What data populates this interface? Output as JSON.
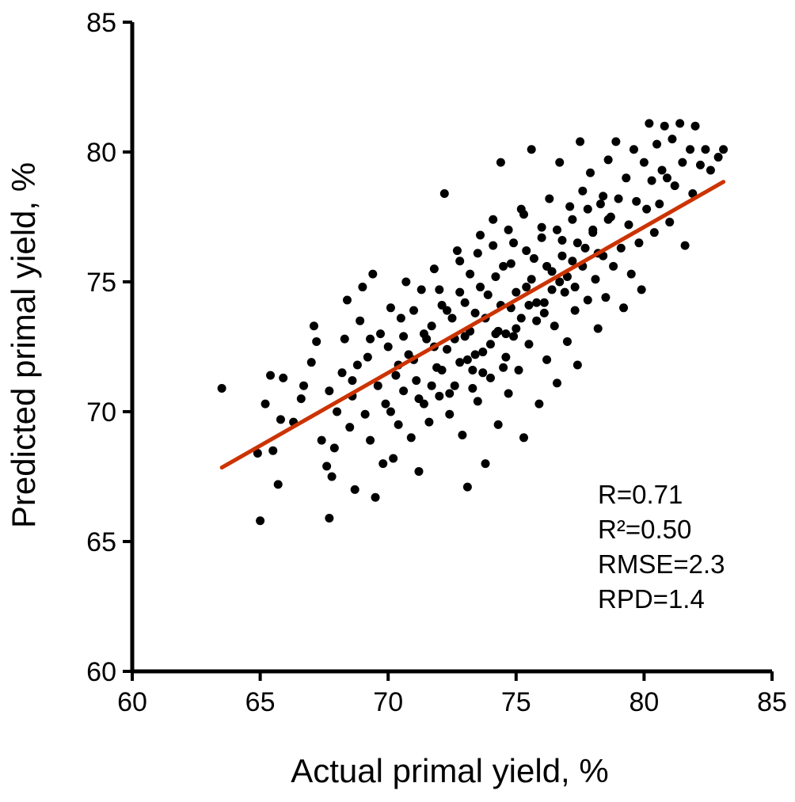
{
  "chart_data": {
    "type": "scatter",
    "title": "",
    "xlabel": "Actual primal yield, %",
    "ylabel": "Predicted primal yield, %",
    "xlim": [
      60,
      85
    ],
    "ylim": [
      60,
      85
    ],
    "x_ticks": [
      60,
      65,
      70,
      75,
      80,
      85
    ],
    "y_ticks": [
      60,
      65,
      70,
      75,
      80,
      85
    ],
    "grid": false,
    "point_color": "#000000",
    "fit_color": "#cc3300",
    "fit_line": {
      "x": [
        63.5,
        83.1
      ],
      "y": [
        67.85,
        78.85
      ]
    },
    "stats": [
      "R=0.71",
      "R²=0.50",
      "RMSE=2.3",
      "RPD=1.4"
    ],
    "points": [
      [
        63.5,
        70.9
      ],
      [
        64.9,
        68.4
      ],
      [
        65.0,
        65.8
      ],
      [
        65.2,
        70.3
      ],
      [
        65.4,
        71.4
      ],
      [
        65.5,
        68.5
      ],
      [
        65.7,
        67.2
      ],
      [
        65.8,
        69.7
      ],
      [
        65.9,
        71.3
      ],
      [
        66.3,
        69.6
      ],
      [
        66.6,
        70.5
      ],
      [
        66.7,
        71.0
      ],
      [
        67.0,
        71.9
      ],
      [
        67.1,
        73.3
      ],
      [
        67.2,
        72.7
      ],
      [
        67.4,
        68.9
      ],
      [
        67.6,
        67.9
      ],
      [
        67.7,
        70.8
      ],
      [
        67.7,
        65.9
      ],
      [
        67.8,
        67.5
      ],
      [
        67.9,
        68.6
      ],
      [
        68.0,
        70.0
      ],
      [
        68.2,
        71.5
      ],
      [
        68.3,
        72.8
      ],
      [
        68.4,
        74.3
      ],
      [
        68.5,
        69.4
      ],
      [
        68.6,
        70.6
      ],
      [
        68.7,
        67.0
      ],
      [
        68.8,
        71.8
      ],
      [
        68.9,
        73.5
      ],
      [
        69.0,
        74.8
      ],
      [
        69.1,
        69.9
      ],
      [
        69.2,
        72.1
      ],
      [
        69.3,
        68.9
      ],
      [
        69.4,
        75.3
      ],
      [
        69.5,
        66.7
      ],
      [
        69.6,
        71.0
      ],
      [
        69.7,
        73.0
      ],
      [
        69.8,
        68.0
      ],
      [
        69.9,
        70.3
      ],
      [
        70.0,
        72.5
      ],
      [
        70.1,
        74.0
      ],
      [
        70.2,
        68.2
      ],
      [
        70.3,
        71.4
      ],
      [
        70.4,
        69.5
      ],
      [
        70.5,
        73.6
      ],
      [
        70.6,
        70.8
      ],
      [
        70.7,
        75.0
      ],
      [
        70.8,
        72.2
      ],
      [
        70.9,
        69.0
      ],
      [
        71.0,
        73.9
      ],
      [
        71.1,
        71.2
      ],
      [
        71.2,
        67.7
      ],
      [
        71.3,
        74.7
      ],
      [
        71.4,
        70.3
      ],
      [
        71.5,
        72.8
      ],
      [
        71.6,
        69.6
      ],
      [
        71.7,
        73.3
      ],
      [
        71.8,
        75.5
      ],
      [
        71.9,
        71.7
      ],
      [
        72.0,
        70.6
      ],
      [
        72.1,
        74.1
      ],
      [
        72.2,
        78.4
      ],
      [
        72.3,
        72.4
      ],
      [
        72.4,
        69.9
      ],
      [
        72.5,
        73.6
      ],
      [
        72.6,
        71.0
      ],
      [
        72.7,
        76.2
      ],
      [
        72.8,
        74.6
      ],
      [
        72.9,
        69.1
      ],
      [
        73.0,
        72.9
      ],
      [
        73.1,
        67.1
      ],
      [
        73.2,
        75.3
      ],
      [
        73.3,
        71.6
      ],
      [
        73.4,
        73.8
      ],
      [
        73.5,
        70.4
      ],
      [
        73.6,
        76.8
      ],
      [
        73.7,
        72.3
      ],
      [
        73.8,
        68.0
      ],
      [
        73.9,
        74.5
      ],
      [
        74.0,
        71.3
      ],
      [
        74.1,
        77.4
      ],
      [
        74.2,
        73.0
      ],
      [
        74.3,
        69.5
      ],
      [
        74.4,
        79.6
      ],
      [
        74.5,
        75.6
      ],
      [
        74.6,
        72.1
      ],
      [
        74.7,
        70.7
      ],
      [
        74.8,
        74.0
      ],
      [
        74.9,
        76.5
      ],
      [
        75.0,
        73.2
      ],
      [
        75.1,
        71.6
      ],
      [
        75.2,
        77.8
      ],
      [
        75.3,
        69.0
      ],
      [
        75.4,
        74.8
      ],
      [
        75.5,
        72.6
      ],
      [
        75.6,
        80.1
      ],
      [
        75.7,
        75.9
      ],
      [
        75.8,
        73.5
      ],
      [
        75.9,
        70.3
      ],
      [
        76.0,
        77.1
      ],
      [
        76.1,
        74.2
      ],
      [
        76.2,
        72.0
      ],
      [
        76.3,
        78.2
      ],
      [
        76.4,
        75.4
      ],
      [
        76.5,
        73.3
      ],
      [
        76.6,
        71.1
      ],
      [
        76.7,
        79.6
      ],
      [
        76.8,
        76.6
      ],
      [
        76.9,
        74.6
      ],
      [
        77.0,
        72.7
      ],
      [
        77.1,
        77.9
      ],
      [
        77.2,
        75.8
      ],
      [
        77.3,
        73.9
      ],
      [
        77.4,
        71.8
      ],
      [
        77.5,
        80.4
      ],
      [
        77.6,
        78.5
      ],
      [
        77.7,
        76.3
      ],
      [
        77.8,
        74.3
      ],
      [
        77.9,
        79.2
      ],
      [
        78.0,
        77.0
      ],
      [
        78.1,
        75.1
      ],
      [
        78.2,
        73.2
      ],
      [
        78.3,
        78.0
      ],
      [
        78.4,
        76.0
      ],
      [
        78.5,
        74.4
      ],
      [
        78.6,
        79.7
      ],
      [
        78.7,
        77.5
      ],
      [
        78.8,
        75.6
      ],
      [
        78.9,
        80.4
      ],
      [
        79.0,
        78.2
      ],
      [
        79.1,
        76.3
      ],
      [
        79.2,
        74.0
      ],
      [
        79.3,
        79.0
      ],
      [
        79.4,
        77.2
      ],
      [
        79.5,
        75.3
      ],
      [
        79.6,
        80.1
      ],
      [
        79.7,
        78.1
      ],
      [
        79.8,
        76.5
      ],
      [
        79.9,
        74.7
      ],
      [
        80.0,
        79.6
      ],
      [
        80.1,
        77.8
      ],
      [
        80.2,
        81.1
      ],
      [
        80.3,
        78.9
      ],
      [
        80.4,
        76.9
      ],
      [
        80.5,
        80.3
      ],
      [
        80.6,
        78.0
      ],
      [
        80.7,
        79.3
      ],
      [
        80.8,
        81.0
      ],
      [
        80.9,
        79.0
      ],
      [
        81.0,
        77.3
      ],
      [
        81.1,
        80.5
      ],
      [
        81.2,
        78.7
      ],
      [
        81.4,
        81.1
      ],
      [
        81.5,
        79.6
      ],
      [
        81.6,
        76.4
      ],
      [
        81.8,
        80.1
      ],
      [
        81.9,
        78.4
      ],
      [
        82.0,
        81.0
      ],
      [
        82.2,
        79.5
      ],
      [
        82.4,
        80.1
      ],
      [
        82.6,
        79.3
      ],
      [
        82.9,
        79.8
      ],
      [
        83.1,
        80.1
      ],
      [
        68.6,
        71.2
      ],
      [
        69.3,
        72.8
      ],
      [
        70.1,
        70.0
      ],
      [
        70.6,
        72.9
      ],
      [
        71.0,
        72.0
      ],
      [
        71.4,
        73.0
      ],
      [
        71.8,
        72.5
      ],
      [
        72.1,
        71.6
      ],
      [
        72.3,
        73.9
      ],
      [
        72.6,
        72.8
      ],
      [
        72.8,
        71.9
      ],
      [
        73.0,
        74.2
      ],
      [
        73.2,
        73.1
      ],
      [
        73.4,
        72.2
      ],
      [
        73.6,
        74.8
      ],
      [
        73.8,
        73.6
      ],
      [
        74.0,
        72.6
      ],
      [
        74.2,
        75.2
      ],
      [
        74.4,
        74.1
      ],
      [
        74.6,
        73.0
      ],
      [
        74.8,
        75.7
      ],
      [
        75.0,
        74.6
      ],
      [
        75.2,
        73.6
      ],
      [
        75.4,
        76.2
      ],
      [
        75.6,
        75.1
      ],
      [
        75.8,
        74.2
      ],
      [
        76.0,
        76.7
      ],
      [
        76.2,
        75.6
      ],
      [
        76.4,
        74.7
      ],
      [
        76.6,
        77.0
      ],
      [
        76.8,
        76.0
      ],
      [
        77.0,
        75.2
      ],
      [
        77.2,
        77.4
      ],
      [
        77.4,
        76.5
      ],
      [
        77.6,
        75.6
      ],
      [
        77.8,
        77.8
      ],
      [
        78.0,
        76.9
      ],
      [
        78.2,
        76.1
      ],
      [
        78.4,
        78.3
      ],
      [
        78.6,
        77.4
      ],
      [
        71.7,
        71.0
      ],
      [
        72.4,
        70.7
      ],
      [
        73.1,
        72.0
      ],
      [
        73.7,
        71.5
      ],
      [
        74.3,
        73.1
      ],
      [
        74.9,
        72.9
      ],
      [
        75.5,
        74.1
      ],
      [
        76.1,
        73.8
      ],
      [
        76.7,
        75.0
      ],
      [
        77.3,
        74.8
      ],
      [
        72.0,
        74.7
      ],
      [
        72.8,
        75.8
      ],
      [
        73.5,
        76.1
      ],
      [
        74.1,
        76.4
      ],
      [
        74.7,
        77.0
      ],
      [
        75.3,
        77.6
      ],
      [
        70.4,
        71.8
      ],
      [
        71.2,
        70.5
      ],
      [
        73.3,
        70.9
      ],
      [
        74.5,
        71.7
      ]
    ]
  }
}
